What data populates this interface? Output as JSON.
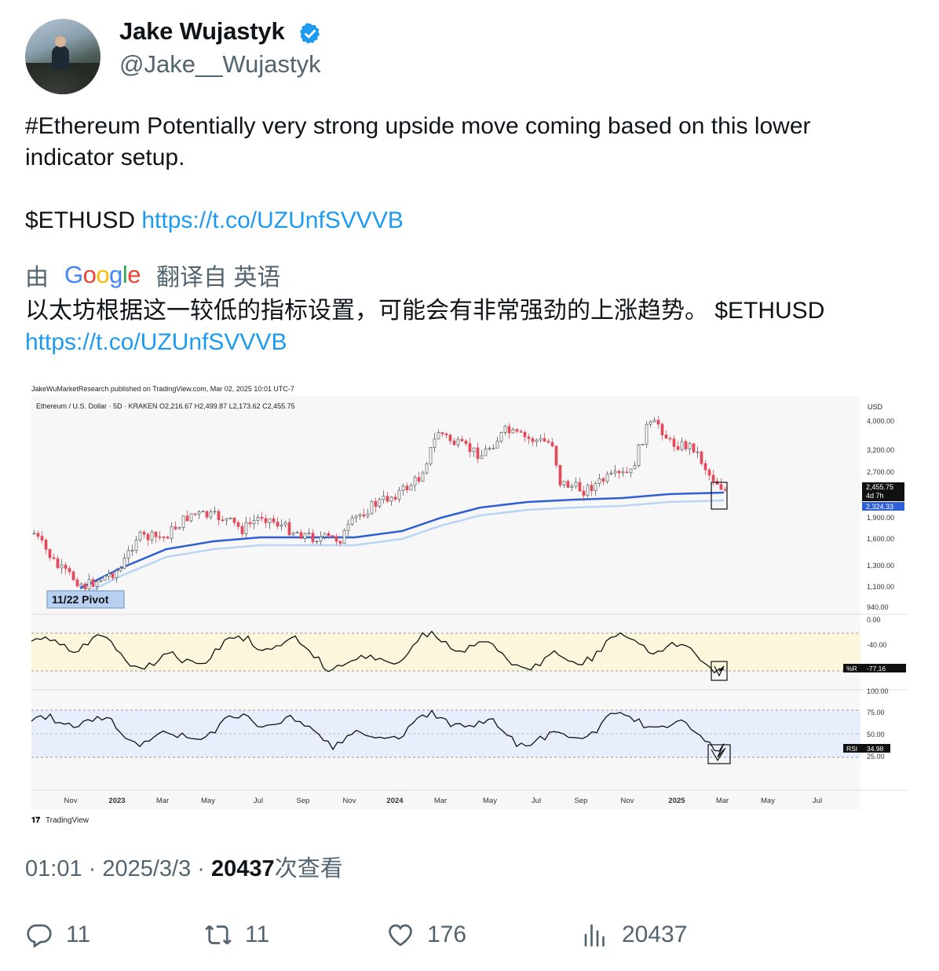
{
  "author": {
    "name": "Jake Wujastyk",
    "handle": "@Jake__Wujastyk"
  },
  "tweet": {
    "line1": "#Ethereum Potentially very strong upside move coming based on this lower",
    "line2": "indicator setup.",
    "ticker": "$ETHUSD",
    "link": "https://t.co/UZUnfSVVVB"
  },
  "translation": {
    "by": "由",
    "google": "Google",
    "from": "翻译自 英语",
    "text": "以太坊根据这一较低的指标设置，可能会有非常强劲的上涨趋势。 $ETHUSD",
    "link": "https://t.co/UZUnfSVVVB"
  },
  "chart": {
    "header": "JakeWuMarketResearch published on TradingView.com, Mar 02, 2025 10:01 UTC-7",
    "symbol_line": "Ethereum / U.S. Dollar · 5D · KRAKEN  O2,216.67  H2,499.87  L2,173.62  C2,455.75",
    "currency": "USD",
    "pivot_label": "11/22 Pivot",
    "price_ticks": [
      "4,000.00",
      "3,200.00",
      "2,700.00",
      "1,900.00",
      "1,600.00",
      "1,300.00",
      "1,100.00",
      "940.00"
    ],
    "price_tag": "2,455.75",
    "price_tag_sub": "4d 7h",
    "ma_tag": "2,324.33",
    "wr_ticks": [
      "0.00",
      "-40.00"
    ],
    "wr_label": "%R",
    "wr_value": "-77.16",
    "rsi_ticks": [
      "100.00",
      "75.00",
      "50.00",
      "25.00"
    ],
    "rsi_label": "RSI",
    "rsi_value": "34.98",
    "x_labels": [
      "Nov",
      "2023",
      "Mar",
      "May",
      "Jul",
      "Sep",
      "Nov",
      "2024",
      "Mar",
      "May",
      "Jul",
      "Sep",
      "Nov",
      "2025",
      "Mar",
      "May",
      "Jul"
    ],
    "brand": "TradingView",
    "colors": {
      "up": "#5b5b5b",
      "down": "#e24a5b",
      "ma_fast": "#2f5fd6",
      "ma_slow": "#b9d4f4",
      "wr_band": "#fbf6dc",
      "rsi_band": "#e8eefb"
    }
  },
  "meta": {
    "time": "01:01",
    "date": "2025/3/3",
    "views": "20437",
    "views_suffix": "次查看"
  },
  "actions": {
    "replies": "11",
    "retweets": "11",
    "likes": "176",
    "views": "20437"
  }
}
